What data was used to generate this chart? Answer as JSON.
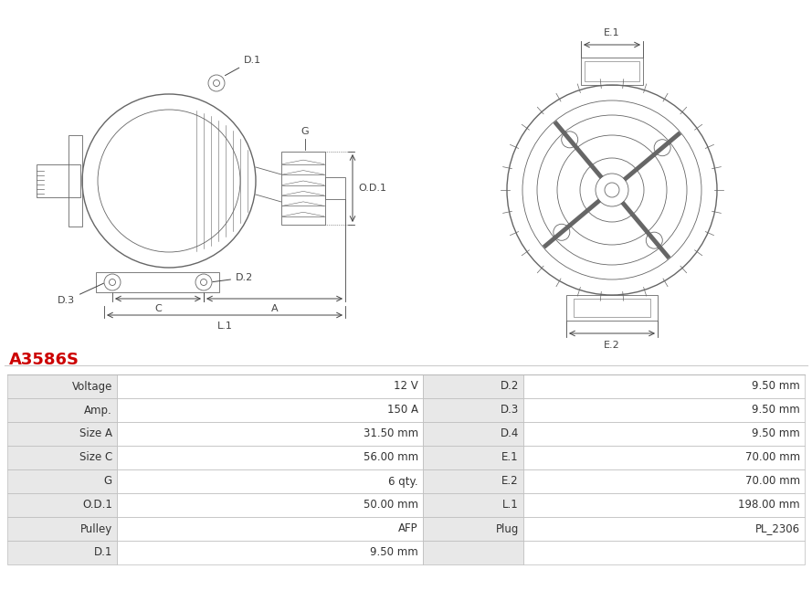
{
  "title": "A3586S",
  "title_color": "#cc0000",
  "bg_color": "#ffffff",
  "table_gray_bg": "#e8e8e8",
  "table_white_bg": "#ffffff",
  "table_border_color": "#bbbbbb",
  "draw_color": "#666666",
  "ann_color": "#444444",
  "rows": [
    [
      "Voltage",
      "12 V",
      "D.2",
      "9.50 mm"
    ],
    [
      "Amp.",
      "150 A",
      "D.3",
      "9.50 mm"
    ],
    [
      "Size A",
      "31.50 mm",
      "D.4",
      "9.50 mm"
    ],
    [
      "Size C",
      "56.00 mm",
      "E.1",
      "70.00 mm"
    ],
    [
      "G",
      "6 qty.",
      "E.2",
      "70.00 mm"
    ],
    [
      "O.D.1",
      "50.00 mm",
      "L.1",
      "198.00 mm"
    ],
    [
      "Pulley",
      "AFP",
      "Plug",
      "PL_2306"
    ],
    [
      "D.1",
      "9.50 mm",
      "",
      ""
    ]
  ],
  "fig_width": 8.89,
  "fig_height": 6.58,
  "dpi": 100
}
